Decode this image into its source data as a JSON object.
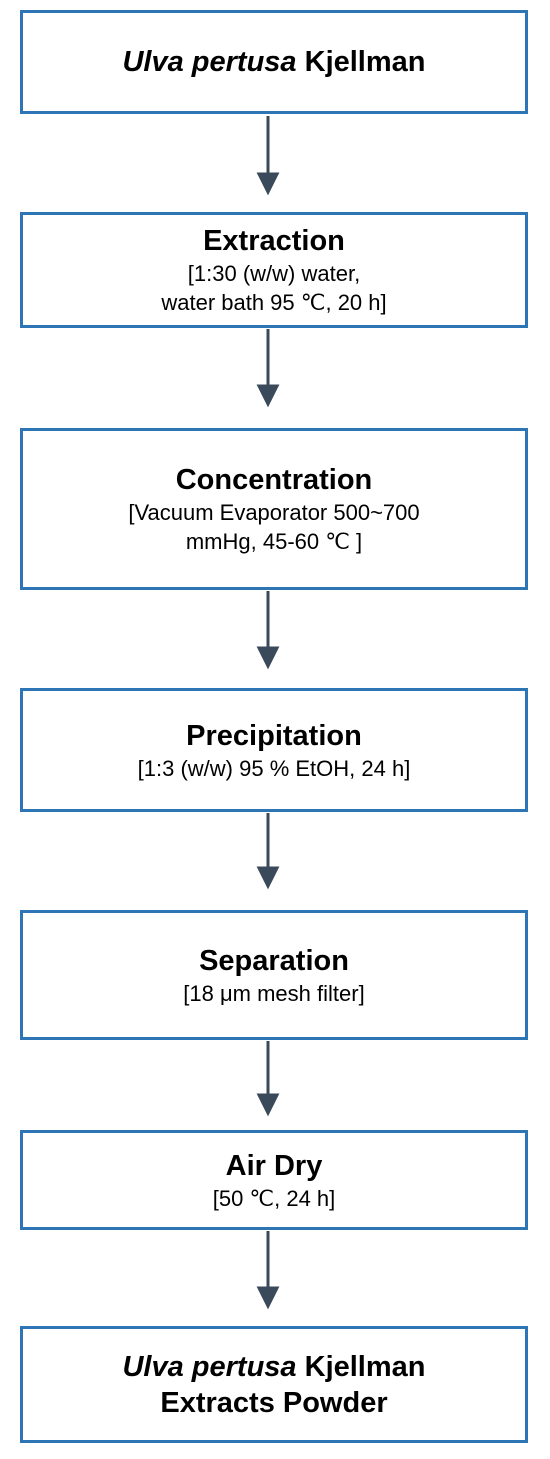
{
  "nodes": [
    {
      "italic": "Ulva pertusa",
      "title": "Kjellman"
    },
    {
      "title": "Extraction",
      "details": [
        "[1:30 (w/w) water,",
        "water bath 95 ℃, 20 h]"
      ]
    },
    {
      "title": "Concentration",
      "details": [
        "[Vacuum Evaporator 500~700",
        "mmHg, 45-60 ℃ ]"
      ]
    },
    {
      "title": "Precipitation",
      "details": [
        "[1:3 (w/w) 95 % EtOH, 24 h]"
      ]
    },
    {
      "title": "Separation",
      "details": [
        "[18 μm mesh filter]"
      ]
    },
    {
      "title": "Air Dry",
      "details": [
        "[50 ℃, 24 h]"
      ]
    },
    {
      "italic": "Ulva pertusa",
      "title": "Kjellman",
      "title2": "Extracts Powder"
    }
  ]
}
